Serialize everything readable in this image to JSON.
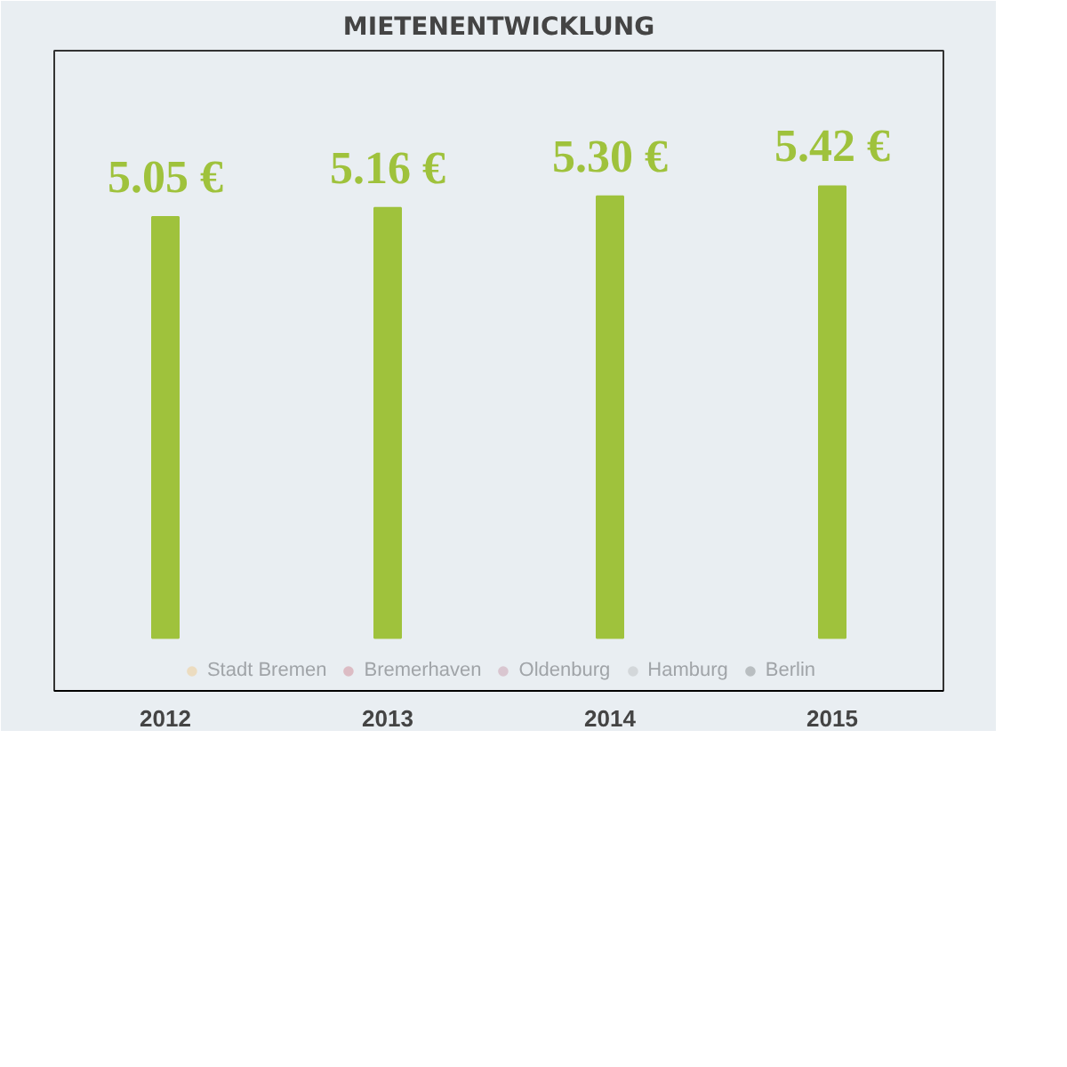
{
  "chart_data": {
    "type": "bar",
    "title": "MIETENENTWICKLUNG",
    "categories": [
      "2012",
      "2013",
      "2014",
      "2015"
    ],
    "series": [
      {
        "color": "#9fc23c",
        "values": [
          5.05,
          5.16,
          5.3,
          5.42
        ],
        "value_labels": [
          "5.05 €",
          "5.16 €",
          "5.30 €",
          "5.42 €"
        ]
      },
      {
        "name": "Stadt Bremen",
        "color": "#ecdcc0",
        "values": [
          null,
          null,
          null,
          null
        ]
      },
      {
        "name": "Bremerhaven",
        "color": "#dcbcc4",
        "values": [
          null,
          null,
          null,
          null
        ]
      },
      {
        "name": "Oldenburg",
        "color": "#d9c6d0",
        "values": [
          null,
          null,
          null,
          null
        ]
      },
      {
        "name": "Hamburg",
        "color": "#d3d7da",
        "values": [
          null,
          null,
          null,
          null
        ]
      },
      {
        "name": "Berlin",
        "color": "#b9bec1",
        "values": [
          null,
          null,
          null,
          null
        ]
      }
    ],
    "legend": "bottom",
    "tick_labels": "x"
  }
}
